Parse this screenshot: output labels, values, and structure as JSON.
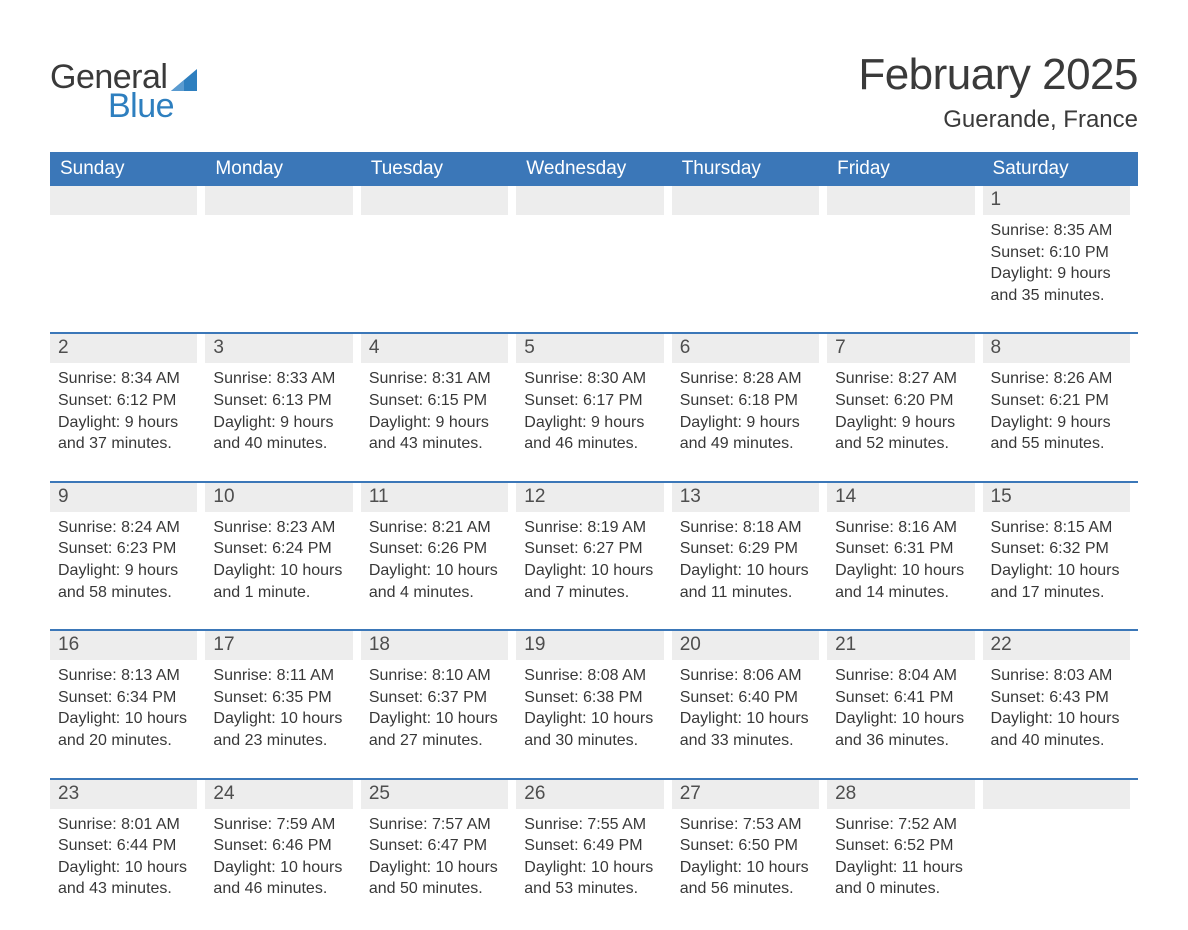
{
  "logo": {
    "word1": "General",
    "word2": "Blue",
    "word1_color": "#3a3a3a",
    "word2_color": "#2e7fbf",
    "triangle_color": "#2e7fbf"
  },
  "header": {
    "month_title": "February 2025",
    "location": "Guerande, France"
  },
  "colors": {
    "header_bar_bg": "#3b77b8",
    "header_bar_text": "#ffffff",
    "day_num_bg": "#ededed",
    "day_border": "#3b77b8",
    "body_text": "#383838",
    "title_text": "#3a3a3a",
    "page_bg": "#ffffff"
  },
  "typography": {
    "month_title_fontsize": 44,
    "location_fontsize": 24,
    "weekday_fontsize": 19,
    "daynum_fontsize": 19,
    "body_fontsize": 16
  },
  "weekdays": [
    "Sunday",
    "Monday",
    "Tuesday",
    "Wednesday",
    "Thursday",
    "Friday",
    "Saturday"
  ],
  "weeks": [
    [
      {
        "empty": true
      },
      {
        "empty": true
      },
      {
        "empty": true
      },
      {
        "empty": true
      },
      {
        "empty": true
      },
      {
        "empty": true
      },
      {
        "day": "1",
        "sunrise": "Sunrise: 8:35 AM",
        "sunset": "Sunset: 6:10 PM",
        "daylight1": "Daylight: 9 hours",
        "daylight2": "and 35 minutes."
      }
    ],
    [
      {
        "day": "2",
        "sunrise": "Sunrise: 8:34 AM",
        "sunset": "Sunset: 6:12 PM",
        "daylight1": "Daylight: 9 hours",
        "daylight2": "and 37 minutes."
      },
      {
        "day": "3",
        "sunrise": "Sunrise: 8:33 AM",
        "sunset": "Sunset: 6:13 PM",
        "daylight1": "Daylight: 9 hours",
        "daylight2": "and 40 minutes."
      },
      {
        "day": "4",
        "sunrise": "Sunrise: 8:31 AM",
        "sunset": "Sunset: 6:15 PM",
        "daylight1": "Daylight: 9 hours",
        "daylight2": "and 43 minutes."
      },
      {
        "day": "5",
        "sunrise": "Sunrise: 8:30 AM",
        "sunset": "Sunset: 6:17 PM",
        "daylight1": "Daylight: 9 hours",
        "daylight2": "and 46 minutes."
      },
      {
        "day": "6",
        "sunrise": "Sunrise: 8:28 AM",
        "sunset": "Sunset: 6:18 PM",
        "daylight1": "Daylight: 9 hours",
        "daylight2": "and 49 minutes."
      },
      {
        "day": "7",
        "sunrise": "Sunrise: 8:27 AM",
        "sunset": "Sunset: 6:20 PM",
        "daylight1": "Daylight: 9 hours",
        "daylight2": "and 52 minutes."
      },
      {
        "day": "8",
        "sunrise": "Sunrise: 8:26 AM",
        "sunset": "Sunset: 6:21 PM",
        "daylight1": "Daylight: 9 hours",
        "daylight2": "and 55 minutes."
      }
    ],
    [
      {
        "day": "9",
        "sunrise": "Sunrise: 8:24 AM",
        "sunset": "Sunset: 6:23 PM",
        "daylight1": "Daylight: 9 hours",
        "daylight2": "and 58 minutes."
      },
      {
        "day": "10",
        "sunrise": "Sunrise: 8:23 AM",
        "sunset": "Sunset: 6:24 PM",
        "daylight1": "Daylight: 10 hours",
        "daylight2": "and 1 minute."
      },
      {
        "day": "11",
        "sunrise": "Sunrise: 8:21 AM",
        "sunset": "Sunset: 6:26 PM",
        "daylight1": "Daylight: 10 hours",
        "daylight2": "and 4 minutes."
      },
      {
        "day": "12",
        "sunrise": "Sunrise: 8:19 AM",
        "sunset": "Sunset: 6:27 PM",
        "daylight1": "Daylight: 10 hours",
        "daylight2": "and 7 minutes."
      },
      {
        "day": "13",
        "sunrise": "Sunrise: 8:18 AM",
        "sunset": "Sunset: 6:29 PM",
        "daylight1": "Daylight: 10 hours",
        "daylight2": "and 11 minutes."
      },
      {
        "day": "14",
        "sunrise": "Sunrise: 8:16 AM",
        "sunset": "Sunset: 6:31 PM",
        "daylight1": "Daylight: 10 hours",
        "daylight2": "and 14 minutes."
      },
      {
        "day": "15",
        "sunrise": "Sunrise: 8:15 AM",
        "sunset": "Sunset: 6:32 PM",
        "daylight1": "Daylight: 10 hours",
        "daylight2": "and 17 minutes."
      }
    ],
    [
      {
        "day": "16",
        "sunrise": "Sunrise: 8:13 AM",
        "sunset": "Sunset: 6:34 PM",
        "daylight1": "Daylight: 10 hours",
        "daylight2": "and 20 minutes."
      },
      {
        "day": "17",
        "sunrise": "Sunrise: 8:11 AM",
        "sunset": "Sunset: 6:35 PM",
        "daylight1": "Daylight: 10 hours",
        "daylight2": "and 23 minutes."
      },
      {
        "day": "18",
        "sunrise": "Sunrise: 8:10 AM",
        "sunset": "Sunset: 6:37 PM",
        "daylight1": "Daylight: 10 hours",
        "daylight2": "and 27 minutes."
      },
      {
        "day": "19",
        "sunrise": "Sunrise: 8:08 AM",
        "sunset": "Sunset: 6:38 PM",
        "daylight1": "Daylight: 10 hours",
        "daylight2": "and 30 minutes."
      },
      {
        "day": "20",
        "sunrise": "Sunrise: 8:06 AM",
        "sunset": "Sunset: 6:40 PM",
        "daylight1": "Daylight: 10 hours",
        "daylight2": "and 33 minutes."
      },
      {
        "day": "21",
        "sunrise": "Sunrise: 8:04 AM",
        "sunset": "Sunset: 6:41 PM",
        "daylight1": "Daylight: 10 hours",
        "daylight2": "and 36 minutes."
      },
      {
        "day": "22",
        "sunrise": "Sunrise: 8:03 AM",
        "sunset": "Sunset: 6:43 PM",
        "daylight1": "Daylight: 10 hours",
        "daylight2": "and 40 minutes."
      }
    ],
    [
      {
        "day": "23",
        "sunrise": "Sunrise: 8:01 AM",
        "sunset": "Sunset: 6:44 PM",
        "daylight1": "Daylight: 10 hours",
        "daylight2": "and 43 minutes."
      },
      {
        "day": "24",
        "sunrise": "Sunrise: 7:59 AM",
        "sunset": "Sunset: 6:46 PM",
        "daylight1": "Daylight: 10 hours",
        "daylight2": "and 46 minutes."
      },
      {
        "day": "25",
        "sunrise": "Sunrise: 7:57 AM",
        "sunset": "Sunset: 6:47 PM",
        "daylight1": "Daylight: 10 hours",
        "daylight2": "and 50 minutes."
      },
      {
        "day": "26",
        "sunrise": "Sunrise: 7:55 AM",
        "sunset": "Sunset: 6:49 PM",
        "daylight1": "Daylight: 10 hours",
        "daylight2": "and 53 minutes."
      },
      {
        "day": "27",
        "sunrise": "Sunrise: 7:53 AM",
        "sunset": "Sunset: 6:50 PM",
        "daylight1": "Daylight: 10 hours",
        "daylight2": "and 56 minutes."
      },
      {
        "day": "28",
        "sunrise": "Sunrise: 7:52 AM",
        "sunset": "Sunset: 6:52 PM",
        "daylight1": "Daylight: 11 hours",
        "daylight2": "and 0 minutes."
      },
      {
        "empty": true
      }
    ]
  ]
}
